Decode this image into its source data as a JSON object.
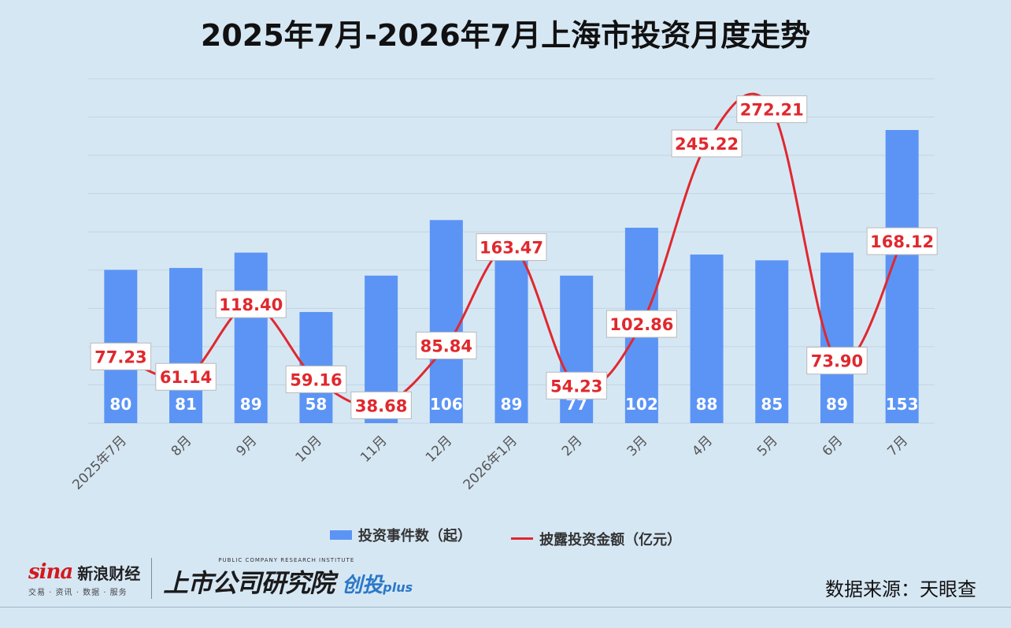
{
  "title": "2025年7月-2026年7月上海市投资月度走势",
  "chart_data": {
    "type": "bar",
    "categories": [
      "2025年7月",
      "8月",
      "9月",
      "10月",
      "11月",
      "12月",
      "2026年1月",
      "2月",
      "3月",
      "4月",
      "5月",
      "6月",
      "7月"
    ],
    "series": [
      {
        "name": "投资事件数（起）",
        "type": "bar",
        "color": "#5b94f5",
        "values": [
          80,
          81,
          89,
          58,
          77,
          106,
          89,
          77,
          102,
          88,
          85,
          89,
          153
        ]
      },
      {
        "name": "披露投资金额（亿元）",
        "type": "line",
        "color": "#e0282e",
        "values": [
          77.23,
          61.14,
          118.4,
          59.16,
          38.68,
          85.84,
          163.47,
          54.23,
          102.86,
          245.22,
          272.21,
          73.9,
          168.12
        ]
      }
    ],
    "bar_labels": [
      "80",
      "81",
      "89",
      "58",
      "77",
      "106",
      "89",
      "77",
      "102",
      "88",
      "85",
      "89",
      "153"
    ],
    "line_labels": [
      "77.23",
      "61.14",
      "118.40",
      "59.16",
      "38.68",
      "85.84",
      "163.47",
      "54.23",
      "102.86",
      "245.22",
      "272.21",
      "73.90",
      "168.12"
    ],
    "grid": true,
    "legend": "bottom"
  },
  "legend": {
    "bar_label": "投资事件数（起）",
    "line_label": "披露投资金额（亿元）"
  },
  "footer": {
    "sina_word": "sina",
    "sina_cn": "新浪财经",
    "sina_sub": "交易 · 资讯 · 数据 · 服务",
    "pc_small": "PUBLIC COMPANY RESEARCH INSTITUTE",
    "pc_cn": "上市公司研究院",
    "pc_ct": "创投",
    "pc_plus": "plus",
    "source": "数据来源：天眼查"
  }
}
